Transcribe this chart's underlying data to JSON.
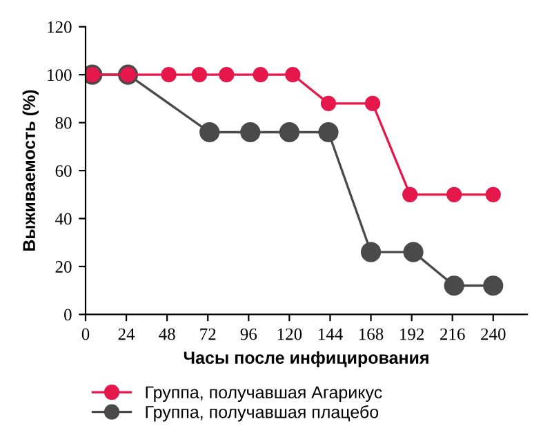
{
  "chart_data": {
    "type": "line",
    "xlabel": "Часы после инфицирования",
    "ylabel": "Выживаемость (%)",
    "xlim": [
      0,
      260
    ],
    "xticks": [
      0,
      24,
      48,
      72,
      96,
      120,
      144,
      168,
      192,
      216,
      240
    ],
    "ylim": [
      0,
      120
    ],
    "yticks": [
      0,
      20,
      40,
      60,
      80,
      100,
      120
    ],
    "grid": false,
    "legend": "bottom",
    "marker": "circle",
    "line_style": "solid",
    "series": [
      {
        "name": "Группа, получавшая Агарикус",
        "color": "#e5174b",
        "x": [
          4,
          25,
          49,
          67,
          83,
          103,
          122,
          143,
          169,
          191,
          217,
          240
        ],
        "values": [
          100,
          100,
          100,
          100,
          100,
          100,
          100,
          88,
          88,
          50,
          50,
          50
        ]
      },
      {
        "name": "Группа, получавшая плацебо",
        "color": "#4a4a4a",
        "x": [
          4,
          25,
          73,
          97,
          120,
          143,
          168,
          193,
          217,
          240
        ],
        "values": [
          100,
          100,
          76,
          76,
          76,
          76,
          26,
          26,
          12,
          12
        ]
      }
    ]
  }
}
